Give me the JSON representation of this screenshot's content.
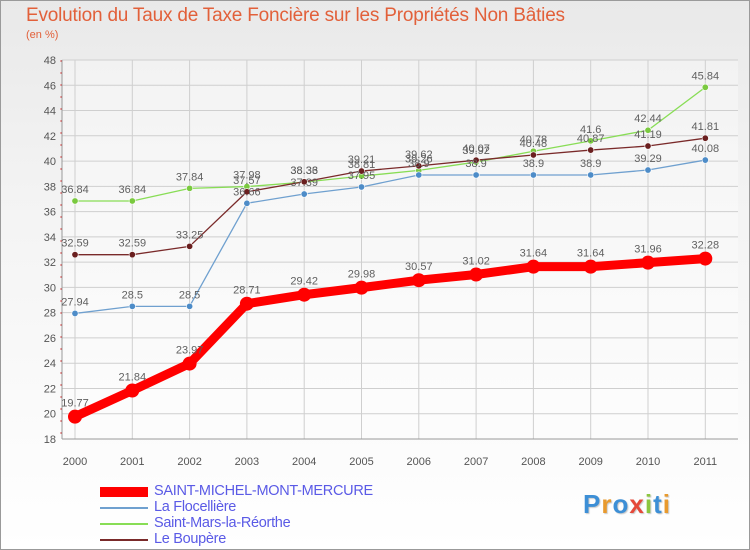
{
  "header": {
    "title": "Evolution du Taux de Taxe Foncière sur les Propriétés Non Bâties",
    "unit": "(en %)"
  },
  "logo": {
    "text": "Proxiti",
    "letters": [
      {
        "ch": "P",
        "color": "#3d8fd6"
      },
      {
        "ch": "r",
        "color": "#e89a2e"
      },
      {
        "ch": "o",
        "color": "#3d8fd6"
      },
      {
        "ch": "x",
        "color": "#e5493a"
      },
      {
        "ch": "i",
        "color": "#8cc63f"
      },
      {
        "ch": "t",
        "color": "#3d8fd6"
      },
      {
        "ch": "i",
        "color": "#e89a2e"
      }
    ]
  },
  "chart_data": {
    "type": "line",
    "title": "Evolution du Taux de Taxe Foncière sur les Propriétés Non Bâties",
    "ylabel": "(en %)",
    "xlabel": "",
    "x": [
      "2000",
      "2001",
      "2002",
      "2003",
      "2004",
      "2005",
      "2006",
      "2007",
      "2008",
      "2009",
      "2010",
      "2011"
    ],
    "ylim": [
      18,
      48
    ],
    "yticks": [
      18,
      20,
      22,
      24,
      26,
      28,
      30,
      32,
      34,
      36,
      38,
      40,
      42,
      44,
      46,
      48
    ],
    "grid": true,
    "legend": "bottom-left",
    "series": [
      {
        "name": "Saint-Mars-la-Réorthe",
        "color": "#88dd55",
        "marker": "#7ac93f",
        "values": [
          36.84,
          36.84,
          37.84,
          37.98,
          38.33,
          38.81,
          39.26,
          39.92,
          40.78,
          41.6,
          42.44,
          45.84
        ],
        "labels": [
          "36.84",
          "36.84",
          "37.84",
          "37.98",
          "38.33",
          "38.81",
          "39.26",
          "39.92",
          "40.78",
          "41.6",
          "42.44",
          "45.84"
        ]
      },
      {
        "name": "Le Boupère",
        "color": "#7a2a2a",
        "marker": "#6a1f1f",
        "values": [
          32.59,
          32.59,
          33.25,
          37.57,
          38.36,
          39.21,
          39.62,
          40.07,
          40.48,
          40.87,
          41.19,
          41.81
        ],
        "labels": [
          "32.59",
          "32.59",
          "33.25",
          "37.57",
          "38.36",
          "39.21",
          "39.62",
          "40.07",
          "40.48",
          "40.87",
          "41.19",
          "41.81"
        ]
      },
      {
        "name": "La Flocellière",
        "color": "#6fa0cf",
        "marker": "#4d8cc8",
        "values": [
          27.94,
          28.5,
          28.5,
          36.66,
          37.39,
          37.95,
          38.9,
          38.9,
          38.9,
          38.9,
          39.29,
          40.08
        ],
        "labels": [
          "27.94",
          "28.5",
          "28.5",
          "36.66",
          "37.39",
          "37.95",
          "38.9",
          "38.9",
          "38.9",
          "38.9",
          "39.29",
          "40.08"
        ]
      },
      {
        "name": "SAINT-MICHEL-MONT-MERCURE",
        "color": "#ff0000",
        "marker": "#ff0000",
        "values": [
          19.77,
          21.84,
          23.97,
          28.71,
          29.42,
          29.98,
          30.57,
          31.02,
          31.64,
          31.64,
          31.96,
          32.28
        ],
        "labels": [
          "19.77",
          "21.84",
          "23.97",
          "28.71",
          "29.42",
          "29.98",
          "30.57",
          "31.02",
          "31.64",
          "31.64",
          "31.96",
          "32.28"
        ]
      }
    ]
  },
  "legend": {
    "items": [
      {
        "label": "SAINT-MICHEL-MONT-MERCURE",
        "color": "#ff0000"
      },
      {
        "label": "La Flocellière",
        "color": "#6fa0cf"
      },
      {
        "label": "Saint-Mars-la-Réorthe",
        "color": "#88dd55"
      },
      {
        "label": "Le Boupère",
        "color": "#7a2a2a"
      }
    ]
  }
}
